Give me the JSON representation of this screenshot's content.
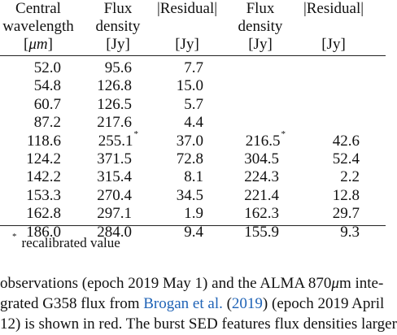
{
  "table": {
    "headers": [
      {
        "lines": [
          "Central",
          "wavelength",
          "[μm]"
        ]
      },
      {
        "lines": [
          "Flux",
          "density",
          "[Jy]"
        ]
      },
      {
        "lines": [
          "|Residual|",
          "",
          "[Jy]"
        ]
      },
      {
        "lines": [
          "Flux",
          "density",
          "[Jy]"
        ]
      },
      {
        "lines": [
          "|Residual|",
          "",
          "[Jy]"
        ]
      }
    ],
    "rows": [
      [
        "52.0",
        "95.6",
        "7.7",
        "",
        ""
      ],
      [
        "54.8",
        "126.8",
        "15.0",
        "",
        ""
      ],
      [
        "60.7",
        "126.5",
        "5.7",
        "",
        ""
      ],
      [
        "87.2",
        "217.6",
        "4.4",
        "",
        ""
      ],
      [
        "118.6",
        "255.1",
        "37.0",
        "216.5",
        "42.6"
      ],
      [
        "124.2",
        "371.5",
        "72.8",
        "304.5",
        "52.4"
      ],
      [
        "142.2",
        "315.4",
        "8.1",
        "224.3",
        "2.2"
      ],
      [
        "153.3",
        "270.4",
        "34.5",
        "221.4",
        "12.8"
      ],
      [
        "162.8",
        "297.1",
        "1.9",
        "162.3",
        "29.7"
      ],
      [
        "186.0",
        "284.0",
        "9.4",
        "155.9",
        "9.3"
      ]
    ],
    "footnote_mark": "*",
    "footnote_text": "recalibrated value"
  },
  "paragraph": {
    "line1_a": "observations (epoch 2019 May 1) and the ALMA 870",
    "line1_unit": "μ",
    "line1_b": "m inte-",
    "line2_a": "grated G358 flux from ",
    "line2_link": "Brogan et al.",
    "line2_b": " (",
    "line2_year": "2019",
    "line2_c": ") (epoch 2019 April",
    "line3": "12) is shown in red. The burst SED features flux densities larger"
  },
  "colors": {
    "text": "#111111",
    "link": "#1f63b6"
  }
}
